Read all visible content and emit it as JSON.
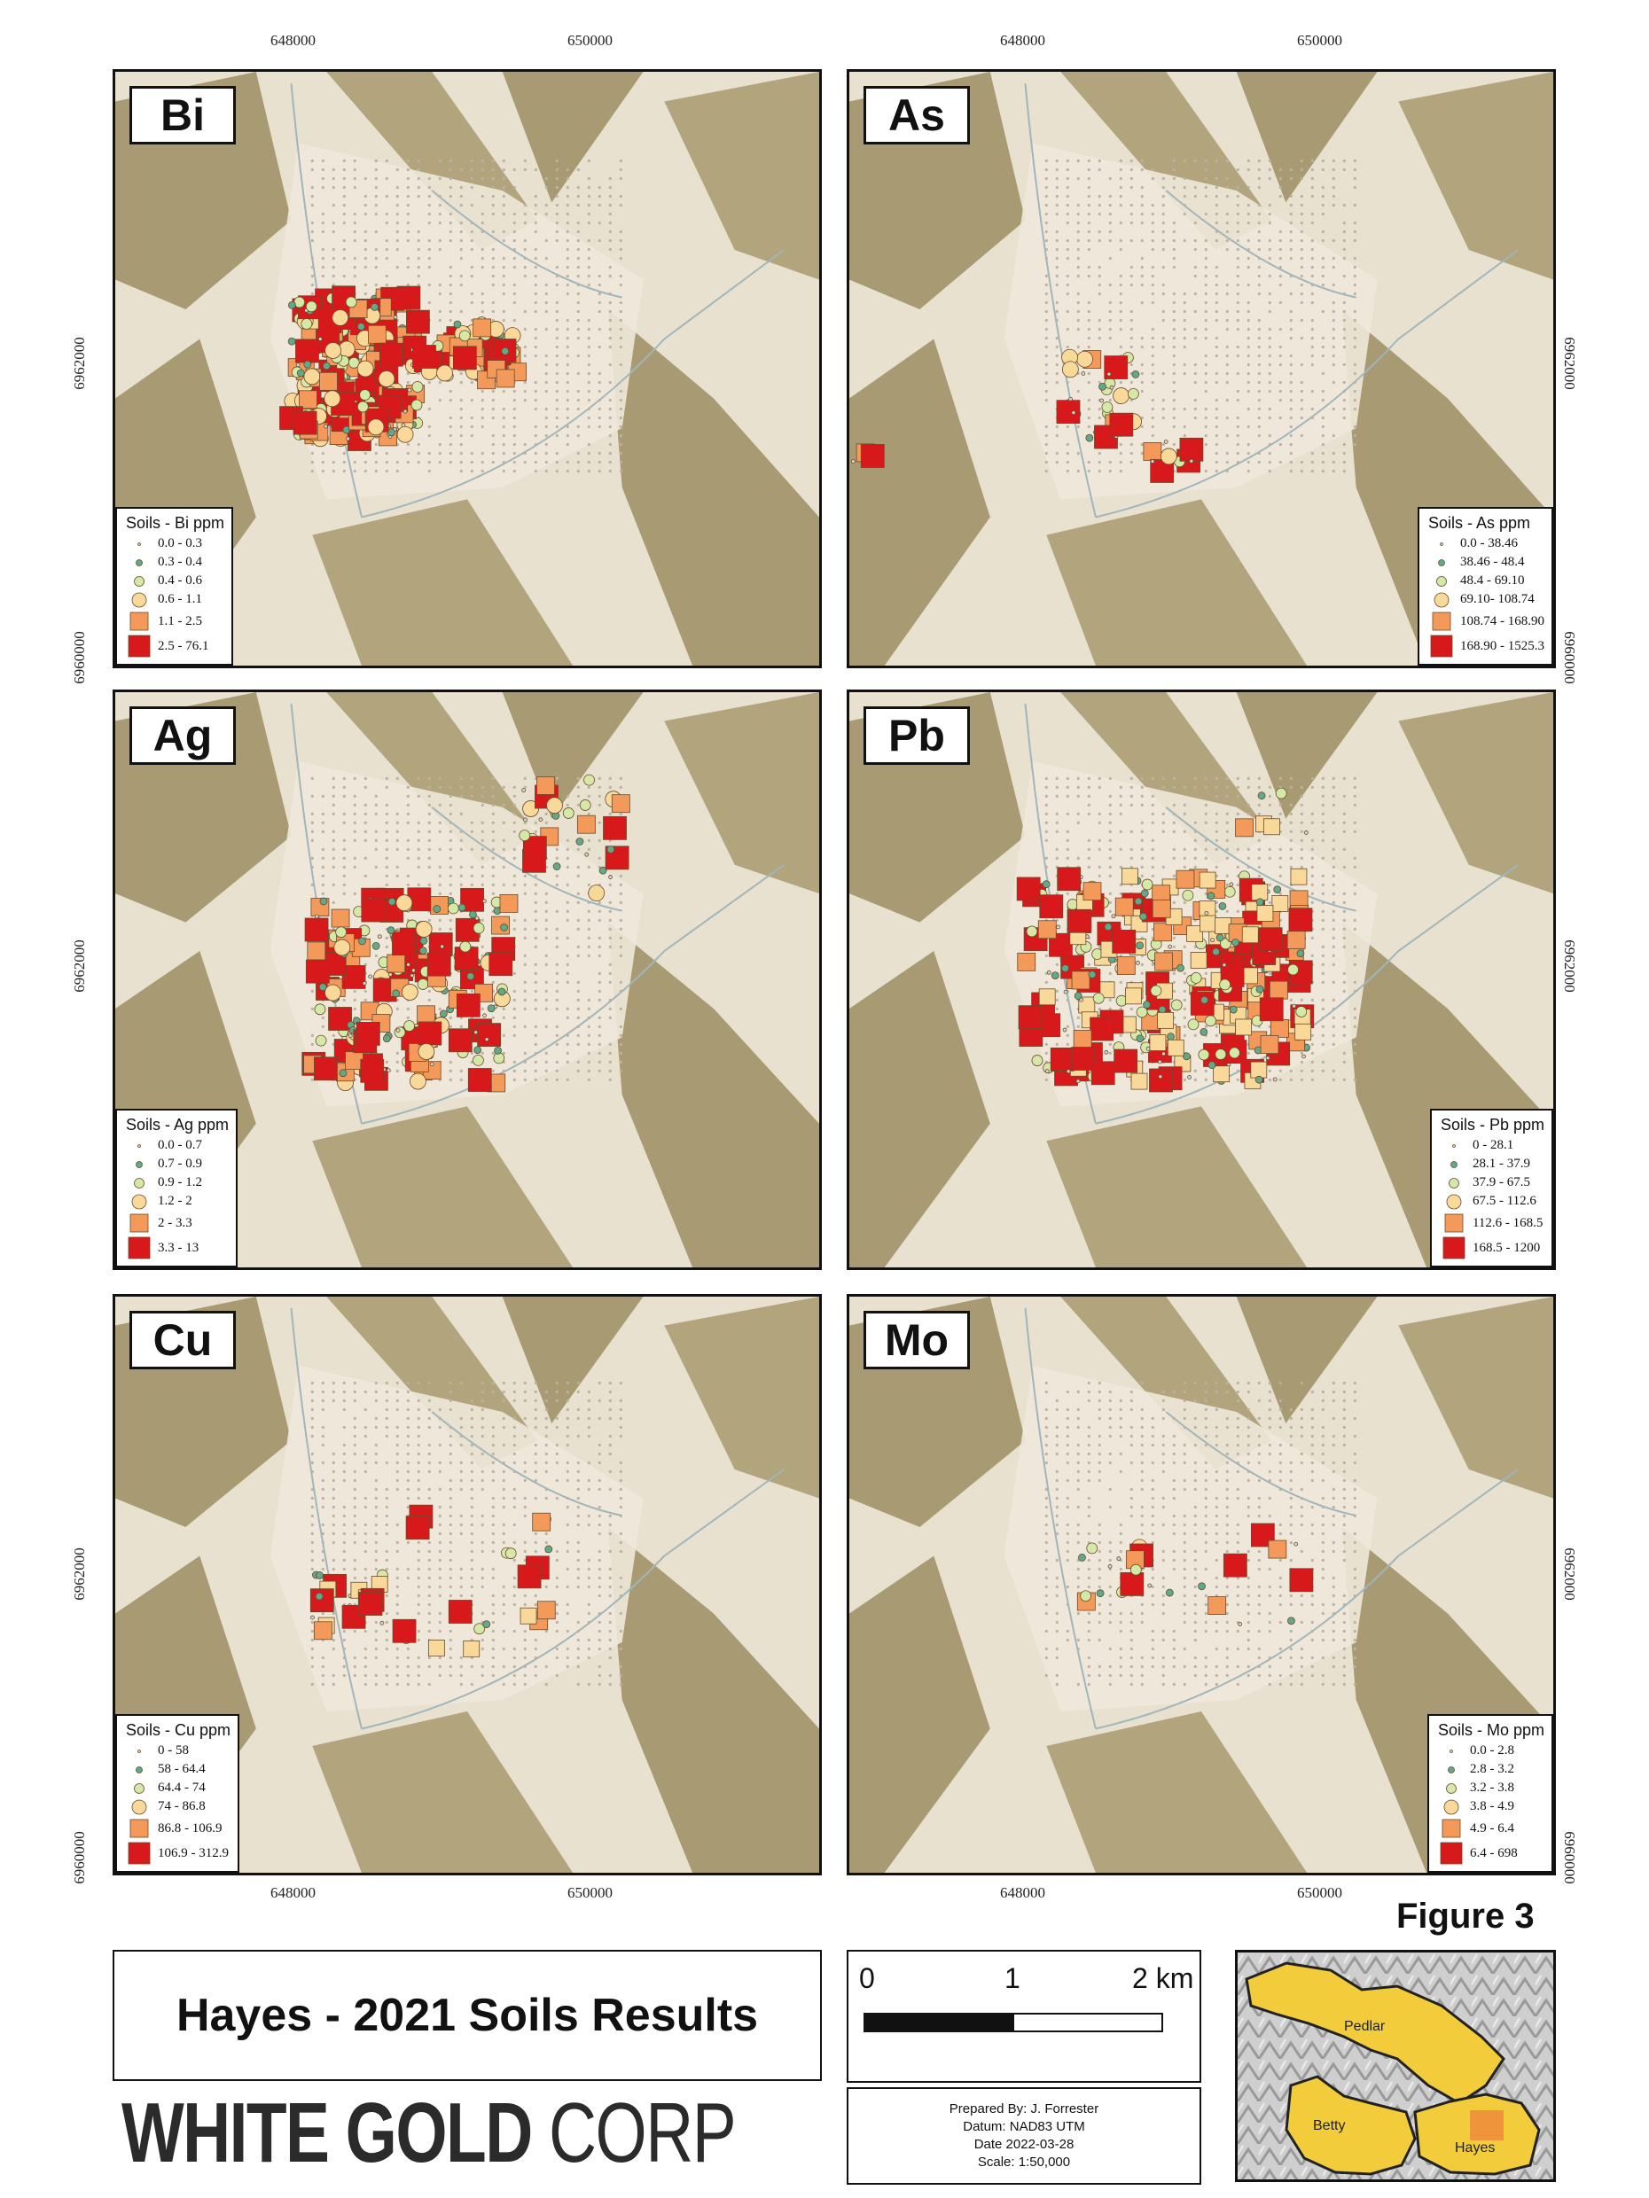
{
  "axes": {
    "x_ticks_top": [
      "648000",
      "650000"
    ],
    "x_ticks_bottom": [
      "648000",
      "650000"
    ],
    "y_ticks": [
      "6962000",
      "6960000"
    ]
  },
  "panels": [
    {
      "element": "Bi",
      "legend_title": "Soils - Bi ppm",
      "classes": [
        "0.0 - 0.3",
        "0.3 - 0.4",
        "0.4 - 0.6",
        "0.6 - 1.1",
        "1.1 - 2.5",
        "2.5 - 76.1"
      ]
    },
    {
      "element": "As",
      "legend_title": "Soils - As ppm",
      "classes": [
        "0.0 - 38.46",
        "38.46 - 48.4",
        "48.4 - 69.10",
        "69.10- 108.74",
        "108.74 - 168.90",
        "168.90 - 1525.3"
      ]
    },
    {
      "element": "Ag",
      "legend_title": "Soils - Ag ppm",
      "classes": [
        "0.0 - 0.7",
        "0.7 - 0.9",
        "0.9 - 1.2",
        "1.2 - 2",
        "2 - 3.3",
        "3.3 - 13"
      ]
    },
    {
      "element": "Pb",
      "legend_title": "Soils - Pb ppm",
      "classes": [
        "0 - 28.1",
        "28.1 - 37.9",
        "37.9 - 67.5",
        "67.5 - 112.6",
        "112.6 - 168.5",
        "168.5 - 1200"
      ]
    },
    {
      "element": "Cu",
      "legend_title": "Soils - Cu ppm",
      "classes": [
        "0 - 58",
        "58 - 64.4",
        "64.4 - 74",
        "74 - 86.8",
        "86.8 - 106.9",
        "106.9 - 312.9"
      ]
    },
    {
      "element": "Mo",
      "legend_title": "Soils - Mo ppm",
      "classes": [
        "0.0 - 2.8",
        "2.8 - 3.2",
        "3.2 - 3.8",
        "3.8 - 4.9",
        "4.9 - 6.4",
        "6.4 - 698"
      ]
    }
  ],
  "symbol_colors": [
    "#cfd8d2",
    "#5fa98c",
    "#d4e8a8",
    "#f8d99a",
    "#f39a5b",
    "#d7191c"
  ],
  "figure_label": "Figure 3",
  "title": "Hayes - 2021 Soils Results",
  "logo": {
    "bold": "WHITE GOLD",
    "thin": "CORP"
  },
  "scale_bar": {
    "labels": [
      "0",
      "1",
      "2 km"
    ]
  },
  "info": {
    "prepared_by": "Prepared By: J. Forrester",
    "datum": "Datum: NAD83 UTM",
    "date": "Date 2022-03-28",
    "scale": "Scale: 1:50,000"
  },
  "inset": {
    "claims": [
      "Pedlar",
      "Betty",
      "Hayes"
    ]
  }
}
